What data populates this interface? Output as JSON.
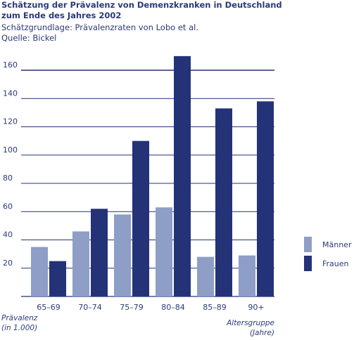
{
  "header": {
    "title": "Schätzung der Prävalenz von Demenzkranken in Deutschland zum Ende des Jahres 2002",
    "subtitle": "Schätzgrundlage: Prävalenzraten von Lobo et al.",
    "source": "Quelle: Bickel"
  },
  "notes": {
    "y_label_line1": "Prävalenz",
    "y_label_line2": "(in 1.000)",
    "x_label_line1": "Altersgruppe",
    "x_label_line2": "(Jahre)"
  },
  "colors": {
    "maenner": "#8e9ec7",
    "frauen": "#243277",
    "grid": "#243277",
    "text": "#2b3a78"
  },
  "chart_data": {
    "type": "bar",
    "title": "Schätzung der Prävalenz von Demenzkranken in Deutschland zum Ende des Jahres 2002",
    "xlabel": "Altersgruppe (Jahre)",
    "ylabel": "Prävalenz (in 1.000)",
    "categories": [
      "65–69",
      "70–74",
      "75–79",
      "80–84",
      "85–89",
      "90+"
    ],
    "ylim": [
      0,
      160
    ],
    "yticks": [
      20,
      40,
      60,
      80,
      100,
      120,
      140,
      160
    ],
    "grid": true,
    "legend_position": "right",
    "series": [
      {
        "name": "Männer",
        "values": [
          35,
          46,
          58,
          63,
          28,
          29
        ]
      },
      {
        "name": "Frauen",
        "values": [
          25,
          62,
          110,
          170,
          133,
          138
        ]
      }
    ]
  }
}
